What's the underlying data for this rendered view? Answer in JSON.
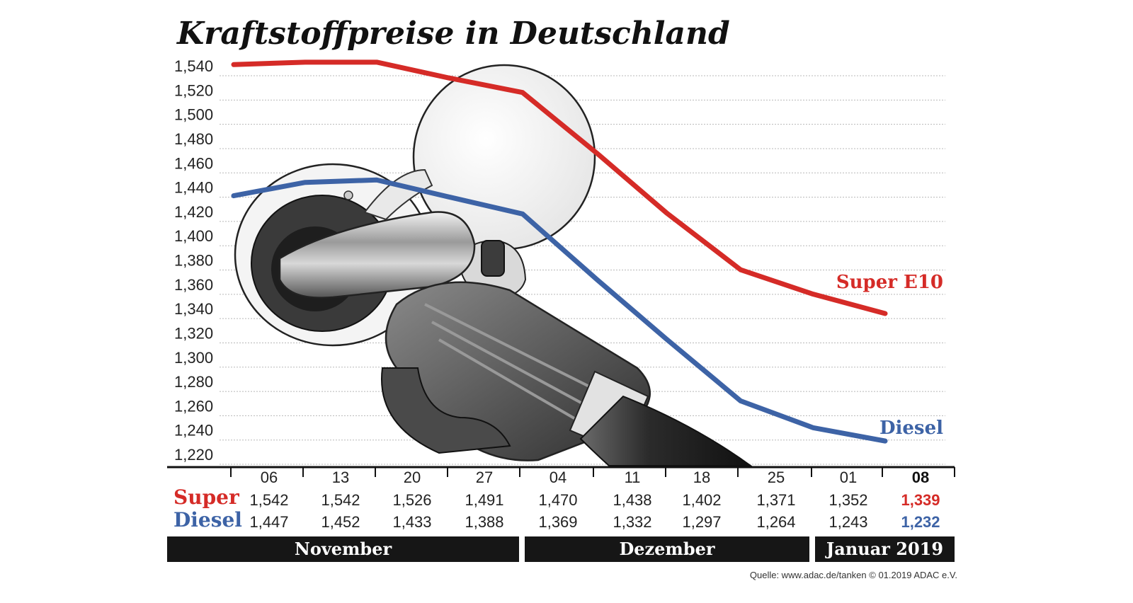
{
  "colors": {
    "super": "#d52b27",
    "diesel": "#3d63a6",
    "band": "#161616",
    "grid": "#b8b8b8"
  },
  "chart_data": {
    "type": "line",
    "title": "Kraftstoffpreise in Deutschland",
    "categories": [
      "06",
      "13",
      "20",
      "27",
      "04",
      "11",
      "18",
      "25",
      "01",
      "08"
    ],
    "ylim": [
      1.22,
      1.54
    ],
    "yticks": [
      "1,540",
      "1,520",
      "1,500",
      "1,480",
      "1,460",
      "1,440",
      "1,420",
      "1,400",
      "1,380",
      "1,360",
      "1,340",
      "1,320",
      "1,300",
      "1,280",
      "1,260",
      "1,240",
      "1,220"
    ],
    "grid": true,
    "series": [
      {
        "name": "Super E10",
        "row_label": "Super",
        "color": "#d52b27",
        "values": [
          1.542,
          1.542,
          1.526,
          1.491,
          1.47,
          1.438,
          1.402,
          1.371,
          1.352,
          1.339
        ],
        "value_labels": [
          "1,542",
          "1,542",
          "1,526",
          "1,491",
          "1,470",
          "1,438",
          "1,402",
          "1,371",
          "1,352",
          "1,339"
        ],
        "line_values": [
          1.541,
          1.543,
          1.543,
          1.53,
          1.518,
          1.468,
          1.419,
          1.372,
          1.352,
          1.336
        ]
      },
      {
        "name": "Diesel",
        "row_label": "Diesel",
        "color": "#3d63a6",
        "values": [
          1.447,
          1.452,
          1.433,
          1.388,
          1.369,
          1.332,
          1.297,
          1.264,
          1.243,
          1.232
        ],
        "value_labels": [
          "1,447",
          "1,452",
          "1,433",
          "1,388",
          "1,369",
          "1,332",
          "1,297",
          "1,264",
          "1,243",
          "1,232"
        ],
        "line_values": [
          1.433,
          1.444,
          1.446,
          1.432,
          1.418,
          1.364,
          1.315,
          1.264,
          1.242,
          1.231
        ]
      }
    ],
    "months": [
      {
        "label": "November",
        "from": 0,
        "to": 3
      },
      {
        "label": "Dezember",
        "from": 4,
        "to": 7
      },
      {
        "label": "Januar 2019",
        "from": 8,
        "to": 9
      }
    ],
    "source": "Quelle: www.adac.de/tanken    © 01.2019  ADAC e.V."
  }
}
